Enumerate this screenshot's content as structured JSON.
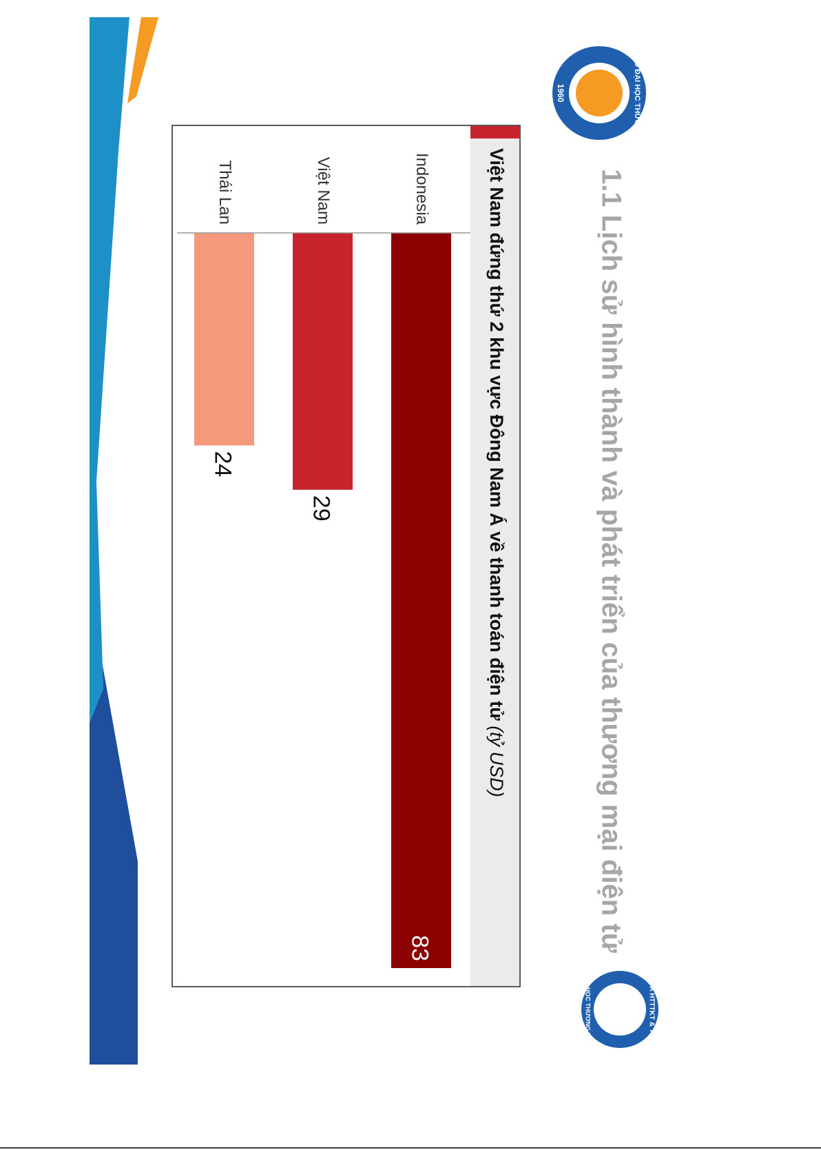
{
  "slide_title": "1.1 Lịch sử hình thành và phát triển của thương mại điện tử",
  "logos": {
    "university": "TRƯỜNG ĐẠI HỌC THƯƠNG MẠI",
    "year": "1960",
    "faculty": "KHOA HTTTKT & TMĐT",
    "faculty_school": "ĐẠI HỌC THƯƠNG MẠI"
  },
  "chart_data": {
    "type": "hbar",
    "title": "Việt Nam đứng thứ 2 khu vực Đông Nam Á về thanh toán điện tử",
    "subtitle": "(tỷ USD)",
    "categories": [
      "Indonesia",
      "Việt Nam",
      "Thái Lan"
    ],
    "values": [
      83,
      29,
      24
    ],
    "colors": [
      "#8b0000",
      "#c8242e",
      "#f4997b"
    ]
  }
}
